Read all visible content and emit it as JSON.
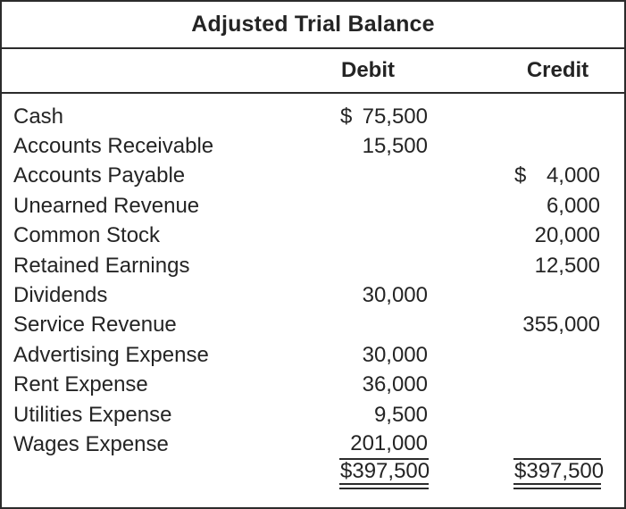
{
  "title": "Adjusted Trial Balance",
  "columns": {
    "debit": "Debit",
    "credit": "Credit"
  },
  "rows": [
    {
      "account": "Cash",
      "debit_currency": "$",
      "debit": "75,500"
    },
    {
      "account": "Accounts Receivable",
      "debit": "15,500"
    },
    {
      "account": "Accounts Payable",
      "credit_currency": "$",
      "credit": "4,000"
    },
    {
      "account": "Unearned Revenue",
      "credit": "6,000"
    },
    {
      "account": "Common Stock",
      "credit": "20,000"
    },
    {
      "account": "Retained Earnings",
      "credit": "12,500"
    },
    {
      "account": "Dividends",
      "debit": "30,000"
    },
    {
      "account": "Service Revenue",
      "credit": "355,000"
    },
    {
      "account": "Advertising Expense",
      "debit": "30,000"
    },
    {
      "account": "Rent Expense",
      "debit": "36,000"
    },
    {
      "account": "Utilities Expense",
      "debit": "9,500"
    },
    {
      "account": "Wages Expense",
      "debit": "201,000",
      "underline_debit": true,
      "underline_credit": true
    }
  ],
  "totals": {
    "debit_currency": "$",
    "debit": "397,500",
    "credit_currency": "$",
    "credit": "397,500"
  },
  "colors": {
    "text": "#242424",
    "border": "#2b2b2b",
    "background": "#ffffff"
  }
}
